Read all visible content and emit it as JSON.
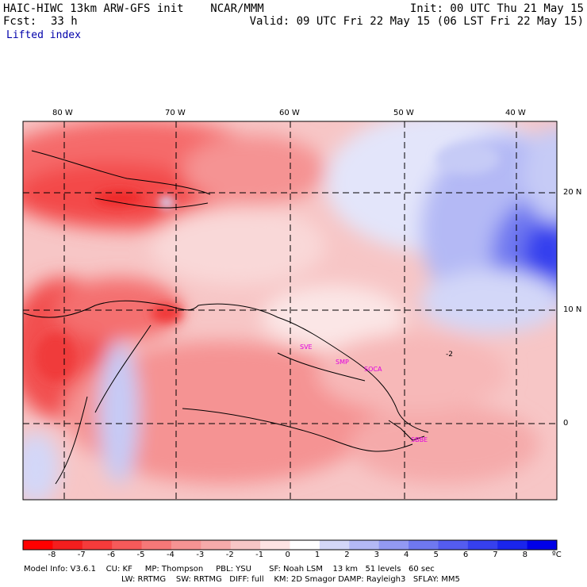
{
  "header": {
    "title": "HAIC-HIWC 13km ARW-GFS init    NCAR/MMM",
    "init": "Init: 00 UTC Thu 21 May 15",
    "fcst_label": "Fcst:",
    "fcst_value": "33 h",
    "valid": "Valid: 09 UTC Fri 22 May 15 (06 LST Fri 22 May 15)",
    "field": "Lifted index"
  },
  "map": {
    "lon_labels": [
      "80 W",
      "70 W",
      "60 W",
      "50 W",
      "40 W"
    ],
    "lat_labels": [
      "20 N",
      "10 N",
      "0"
    ],
    "station_labels": [
      "SVE",
      "SMP",
      "SOCA",
      "SBBE"
    ],
    "contour_label": "-2"
  },
  "colorbar": {
    "labels": [
      "-8",
      "-7",
      "-6",
      "-5",
      "-4",
      "-3",
      "-2",
      "-1",
      "0",
      "1",
      "2",
      "3",
      "4",
      "5",
      "6",
      "7",
      "8"
    ],
    "unit": "ºC",
    "colors": [
      "#ff0000",
      "#f41e1e",
      "#f53b3b",
      "#f55a5a",
      "#f57878",
      "#f59393",
      "#f5aaaa",
      "#f7c6c6",
      "#fde3e3",
      "#ffffff",
      "#d3d7f8",
      "#b4b9f5",
      "#9299f3",
      "#6f78f0",
      "#545cf0",
      "#3640ee",
      "#1a25ec",
      "#0000e8"
    ]
  },
  "footer": {
    "line1": "Model Info: V3.6.1    CU: KF     MP: Thompson     PBL: YSU       SF: Noah LSM    13 km   51 levels   60 sec",
    "line2": "LW: RRTMG    SW: RRTMG   DIFF: full    KM: 2D Smagor DAMP: Rayleigh3   SFLAY: MM5"
  }
}
